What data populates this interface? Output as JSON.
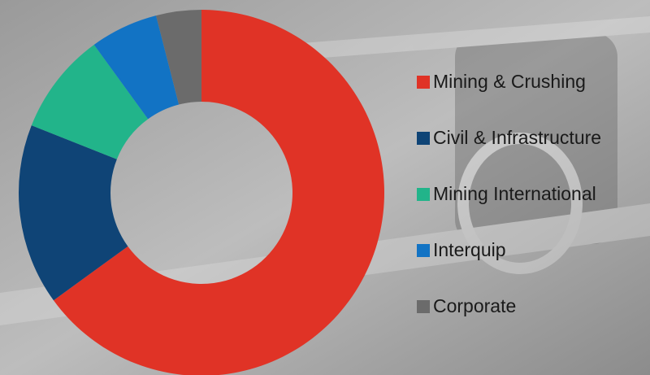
{
  "chart_data": {
    "type": "donut",
    "categories": [
      "Mining & Crushing",
      "Civil & Infrastructure",
      "Mining International",
      "Interquip",
      "Corporate"
    ],
    "values": [
      65,
      16,
      9,
      6,
      4
    ],
    "colors": [
      "#e03326",
      "#0f4476",
      "#22b48a",
      "#1273c4",
      "#6b6b6b"
    ]
  }
}
